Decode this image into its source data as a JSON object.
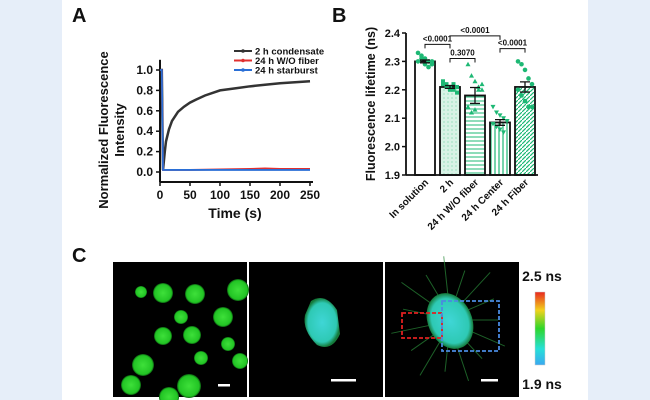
{
  "panels": {
    "a": "A",
    "b": "B",
    "c": "C"
  },
  "chart_data": [
    {
      "type": "line",
      "xlabel": "Time (s)",
      "ylabel": "Normalized Fluorescence Intensity",
      "xlim": [
        0,
        250
      ],
      "ylim": [
        -0.08,
        1.1
      ],
      "xticks": [
        0,
        50,
        100,
        150,
        200,
        250
      ],
      "yticks": [
        0.0,
        0.2,
        0.4,
        0.6,
        0.8,
        1.0
      ],
      "legend_position": "top-right",
      "series": [
        {
          "name": "2 h condensate",
          "color": "#333333",
          "x": [
            0,
            3,
            5,
            8,
            10,
            15,
            20,
            30,
            40,
            50,
            60,
            75,
            100,
            125,
            150,
            175,
            200,
            225,
            250
          ],
          "y": [
            1.0,
            1.0,
            0.02,
            0.2,
            0.3,
            0.42,
            0.5,
            0.59,
            0.64,
            0.68,
            0.71,
            0.75,
            0.8,
            0.82,
            0.84,
            0.855,
            0.87,
            0.88,
            0.89
          ]
        },
        {
          "name": "24 h W/O fiber",
          "color": "#e03030",
          "x": [
            0,
            3,
            5,
            10,
            50,
            100,
            150,
            175,
            200,
            250
          ],
          "y": [
            1.0,
            1.0,
            0.02,
            0.02,
            0.02,
            0.025,
            0.03,
            0.035,
            0.03,
            0.03
          ]
        },
        {
          "name": "24 h starburst",
          "color": "#2a6fd6",
          "x": [
            0,
            3,
            5,
            10,
            50,
            100,
            150,
            200,
            250
          ],
          "y": [
            1.0,
            1.0,
            0.02,
            0.02,
            0.02,
            0.02,
            0.02,
            0.02,
            0.02
          ]
        }
      ]
    },
    {
      "type": "bar",
      "ylabel": "Fluorescence  lifetime (ns)",
      "ylim": [
        1.9,
        2.4
      ],
      "yticks": [
        1.9,
        2.0,
        2.1,
        2.2,
        2.3,
        2.4
      ],
      "categories": [
        "In solution",
        "2 h",
        "24 h W/O fiber",
        "24 h Center",
        "24 h Fiber"
      ],
      "values": [
        2.3,
        2.21,
        2.18,
        2.085,
        2.21
      ],
      "errors": [
        0.005,
        0.005,
        0.028,
        0.01,
        0.018
      ],
      "points": [
        [
          2.33,
          2.32,
          2.31,
          2.3,
          2.29,
          2.3,
          2.31,
          2.29,
          2.28,
          2.3
        ],
        [
          2.23,
          2.22,
          2.21,
          2.2,
          2.19,
          2.22,
          2.21,
          2.2,
          2.22,
          2.21
        ],
        [
          2.29,
          2.25,
          2.23,
          2.21,
          2.2,
          2.14,
          2.12,
          2.13,
          2.2,
          2.22
        ],
        [
          2.14,
          2.12,
          2.11,
          2.1,
          2.09,
          2.08,
          2.07,
          2.06,
          2.05,
          2.09
        ],
        [
          2.3,
          2.29,
          2.27,
          2.24,
          2.22,
          2.2,
          2.18,
          2.16,
          2.14,
          2.14
        ]
      ],
      "marker_color": "#1db874",
      "comparisons": [
        {
          "from": 0,
          "to": 1,
          "label": "<0.0001"
        },
        {
          "from": 1,
          "to": 2,
          "label": "0.3070"
        },
        {
          "from": 1,
          "to": 3,
          "label": "<0.0001"
        },
        {
          "from": 3,
          "to": 4,
          "label": "<0.0001"
        }
      ]
    }
  ],
  "colorbar": {
    "max_label": "2.5 ns",
    "min_label": "1.9 ns"
  }
}
